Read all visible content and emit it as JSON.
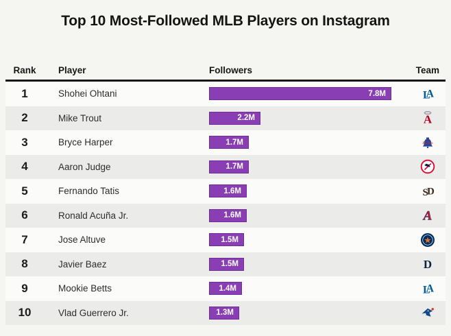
{
  "title": "Top 10 Most-Followed MLB Players on Instagram",
  "colors": {
    "bar_fill": "#8a3eb4",
    "bar_border": "#6f2d96",
    "bar_label_text": "#ffffff",
    "row_odd_bg": "#fbfbf9",
    "row_even_bg": "#ebebe9",
    "page_bg": "#f5f5f2",
    "header_text": "#161616"
  },
  "table": {
    "columns": [
      "Rank",
      "Player",
      "Followers",
      "Team"
    ],
    "rows": [
      {
        "rank": "1",
        "player": "Shohei Ohtani",
        "followers": "7.8M",
        "team": {
          "id": "lad",
          "name": "Dodgers",
          "logo": "dodgers-logo",
          "colors": [
            "#005A9C",
            "#005A9C"
          ]
        }
      },
      {
        "rank": "2",
        "player": "Mike Trout",
        "followers": "2.2M",
        "team": {
          "id": "laa",
          "name": "Angels",
          "logo": "angels-logo",
          "colors": [
            "#BA0021",
            "#9aa0a6"
          ]
        }
      },
      {
        "rank": "3",
        "player": "Bryce Harper",
        "followers": "1.7M",
        "team": {
          "id": "phi",
          "name": "Phillies",
          "logo": "phillies-logo",
          "colors": [
            "#284898",
            "#E81828"
          ]
        }
      },
      {
        "rank": "4",
        "player": "Aaron Judge",
        "followers": "1.7M",
        "team": {
          "id": "nyy",
          "name": "Yankees",
          "logo": "yankees-logo",
          "colors": [
            "#0C2340",
            "#E4002B"
          ]
        }
      },
      {
        "rank": "5",
        "player": "Fernando Tatis",
        "followers": "1.6M",
        "team": {
          "id": "sd",
          "name": "Padres",
          "logo": "padres-logo",
          "colors": [
            "#3a2a1e",
            "#3a2a1e"
          ]
        }
      },
      {
        "rank": "6",
        "player": "Ronald Acuña Jr.",
        "followers": "1.6M",
        "team": {
          "id": "atl",
          "name": "Braves",
          "logo": "braves-logo",
          "colors": [
            "#CE1141",
            "#13274F"
          ]
        }
      },
      {
        "rank": "7",
        "player": "Jose Altuve",
        "followers": "1.5M",
        "team": {
          "id": "hou",
          "name": "Astros",
          "logo": "astros-logo",
          "colors": [
            "#002D62",
            "#EB6E1F"
          ]
        }
      },
      {
        "rank": "8",
        "player": "Javier Baez",
        "followers": "1.5M",
        "team": {
          "id": "det",
          "name": "Tigers",
          "logo": "tigers-logo",
          "colors": [
            "#0C2340",
            "#0C2340"
          ]
        }
      },
      {
        "rank": "9",
        "player": "Mookie Betts",
        "followers": "1.4M",
        "team": {
          "id": "lad",
          "name": "Dodgers",
          "logo": "dodgers-logo",
          "colors": [
            "#005A9C",
            "#005A9C"
          ]
        }
      },
      {
        "rank": "10",
        "player": "Vlad Guerrero Jr.",
        "followers": "1.3M",
        "team": {
          "id": "tor",
          "name": "Blue Jays",
          "logo": "blue-jays-logo",
          "colors": [
            "#134A8E",
            "#E8291C"
          ]
        }
      }
    ]
  },
  "chart_data": {
    "type": "bar",
    "orientation": "horizontal",
    "title": "Top 10 Most-Followed MLB Players on Instagram",
    "categories": [
      "Shohei Ohtani",
      "Mike Trout",
      "Bryce Harper",
      "Aaron Judge",
      "Fernando Tatis",
      "Ronald Acuña Jr.",
      "Jose Altuve",
      "Javier Baez",
      "Mookie Betts",
      "Vlad Guerrero Jr."
    ],
    "values": [
      7.8,
      2.2,
      1.7,
      1.7,
      1.6,
      1.6,
      1.5,
      1.5,
      1.4,
      1.3
    ],
    "value_labels": [
      "7.8M",
      "2.2M",
      "1.7M",
      "1.7M",
      "1.6M",
      "1.6M",
      "1.5M",
      "1.5M",
      "1.4M",
      "1.3M"
    ],
    "teams": [
      "Dodgers",
      "Angels",
      "Phillies",
      "Yankees",
      "Padres",
      "Braves",
      "Astros",
      "Tigers",
      "Dodgers",
      "Blue Jays"
    ],
    "xlabel": "Followers",
    "ylabel": "Player",
    "unit": "millions",
    "xlim": [
      0,
      7.8
    ],
    "grid": false,
    "legend": false,
    "bar_color": "#8a3eb4",
    "value_label_position": "inside-end"
  }
}
